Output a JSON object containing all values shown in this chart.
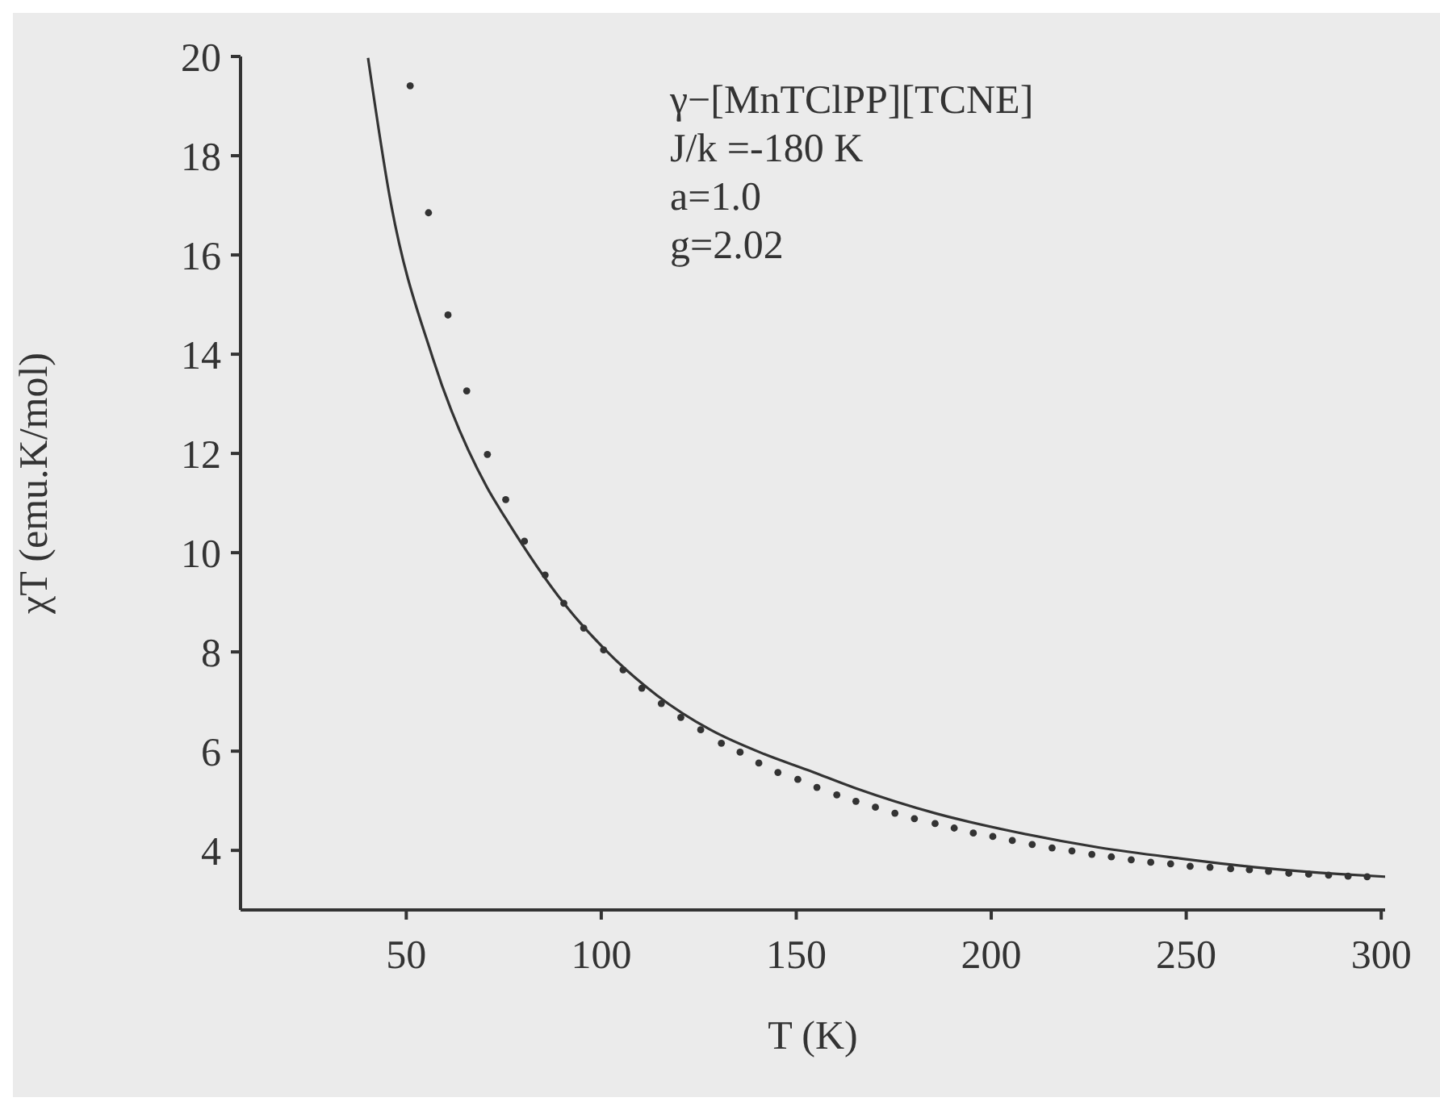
{
  "chart_data": {
    "type": "scatter",
    "xlabel": "T (K)",
    "ylabel": "χT (emu.K/mol)",
    "annotations": [
      "γ−[MnTClPP][TCNE]",
      "J/k =-180 K",
      "a=1.0",
      "g=2.02"
    ],
    "xlim": [
      7.5,
      301
    ],
    "xticks": [
      50,
      100,
      150,
      200,
      250,
      300
    ],
    "ylim": [
      2.8,
      20
    ],
    "yticks": [
      4,
      6,
      8,
      10,
      12,
      14,
      16,
      18,
      20
    ],
    "grid": false,
    "legend": false,
    "series": [
      {
        "marker": "circle",
        "color": "#333333",
        "x": [
          51,
          55.7,
          60.7,
          65.5,
          70.8,
          75.5,
          80.3,
          85.6,
          90.4,
          95.5,
          100.6,
          105.6,
          110.4,
          115.4,
          120.4,
          125.5,
          130.8,
          135.6,
          140.4,
          145.3,
          150.4,
          155.3,
          160.4,
          165.3,
          170.3,
          175.3,
          180.3,
          185.6,
          190.5,
          195.4,
          200.4,
          205.4,
          210.5,
          215.6,
          220.7,
          225.8,
          230.8,
          235.9,
          240.9,
          246,
          251,
          256.1,
          261.4,
          266.2,
          271.1,
          276.3,
          281.4,
          286.5,
          291.5,
          296.4
        ],
        "values": [
          19.41,
          16.85,
          14.79,
          13.26,
          11.98,
          11.07,
          10.23,
          9.55,
          8.98,
          8.48,
          8.04,
          7.64,
          7.27,
          6.96,
          6.68,
          6.43,
          6.16,
          5.98,
          5.76,
          5.57,
          5.43,
          5.27,
          5.12,
          4.99,
          4.87,
          4.75,
          4.64,
          4.54,
          4.45,
          4.35,
          4.28,
          4.2,
          4.12,
          4.05,
          3.99,
          3.92,
          3.87,
          3.81,
          3.76,
          3.73,
          3.68,
          3.66,
          3.63,
          3.61,
          3.58,
          3.54,
          3.52,
          3.5,
          3.48,
          3.47
        ]
      },
      {
        "type": "line",
        "marker": "none",
        "line_style": "solid",
        "color": "#333333",
        "x": [
          40.2,
          45.8,
          56.8,
          70.6,
          75.5,
          90.4,
          100.3,
          114.2,
          128,
          141.8,
          152.9,
          165.3,
          186,
          206.8,
          227.5,
          248.2,
          268.9,
          289.7,
          301
        ],
        "values": [
          19.97,
          17.15,
          13.92,
          11.33,
          10.69,
          8.98,
          8.1,
          7.13,
          6.43,
          5.94,
          5.62,
          5.25,
          4.74,
          4.36,
          4.06,
          3.84,
          3.65,
          3.52,
          3.47
        ]
      }
    ]
  }
}
